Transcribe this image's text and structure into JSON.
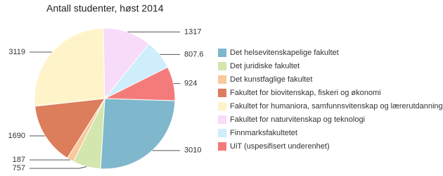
{
  "chart_data": {
    "type": "pie",
    "title": "Antall studenter, høst 2014",
    "categories": [
      "Det helsevitenskapelige fakultet",
      "Det juridiske fakultet",
      "Det kunstfaglige fakultet",
      "Fakultet for biovitenskap, fiskeri og økonomi",
      "Fakultet for humaniora, samfunnsvitenskap og lærerutdanning",
      "Fakultet for naturvitenskap og teknologi",
      "Finnmarksfakultetet",
      "UiT (uspesifisert underenhet)"
    ],
    "values": [
      3010,
      757,
      187,
      1690,
      3119,
      1317,
      807.6,
      924
    ],
    "colors": [
      "#7fb8cc",
      "#d3e6ae",
      "#f9c99a",
      "#dc7d5c",
      "#fff4c9",
      "#f7dbf8",
      "#cdeefa",
      "#f47b7b"
    ],
    "legend": "right"
  }
}
